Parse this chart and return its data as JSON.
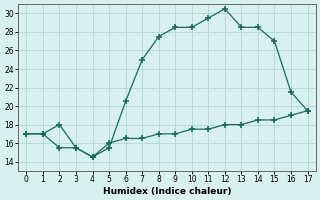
{
  "xlabel": "Humidex (Indice chaleur)",
  "x_line1": [
    0,
    1,
    2,
    3,
    4,
    5,
    6,
    7,
    8,
    9,
    10,
    11,
    12,
    13,
    14,
    15,
    16,
    17
  ],
  "y_line1": [
    17,
    17,
    18,
    15.5,
    14.5,
    15.5,
    20.5,
    25,
    27.5,
    28.5,
    28.5,
    29.5,
    30.5,
    28.5,
    28.5,
    27,
    21.5,
    19.5
  ],
  "x_line2": [
    0,
    1,
    2,
    3,
    4,
    5,
    6,
    7,
    8,
    9,
    10,
    11,
    12,
    13,
    14,
    15,
    16,
    17
  ],
  "y_line2": [
    17,
    17,
    15.5,
    15.5,
    14.5,
    16,
    16.5,
    16.5,
    17,
    17,
    17.5,
    17.5,
    18,
    18,
    18.5,
    18.5,
    19,
    19.5
  ],
  "line_color": "#1a6b5a",
  "bg_color": "#d8f0ee",
  "grid_color": "#b8d8d4",
  "ylim": [
    13,
    31
  ],
  "xlim": [
    -0.5,
    17.5
  ],
  "yticks": [
    14,
    16,
    18,
    20,
    22,
    24,
    26,
    28,
    30
  ],
  "xticks": [
    0,
    1,
    2,
    3,
    4,
    5,
    6,
    7,
    8,
    9,
    10,
    11,
    12,
    13,
    14,
    15,
    16,
    17
  ]
}
